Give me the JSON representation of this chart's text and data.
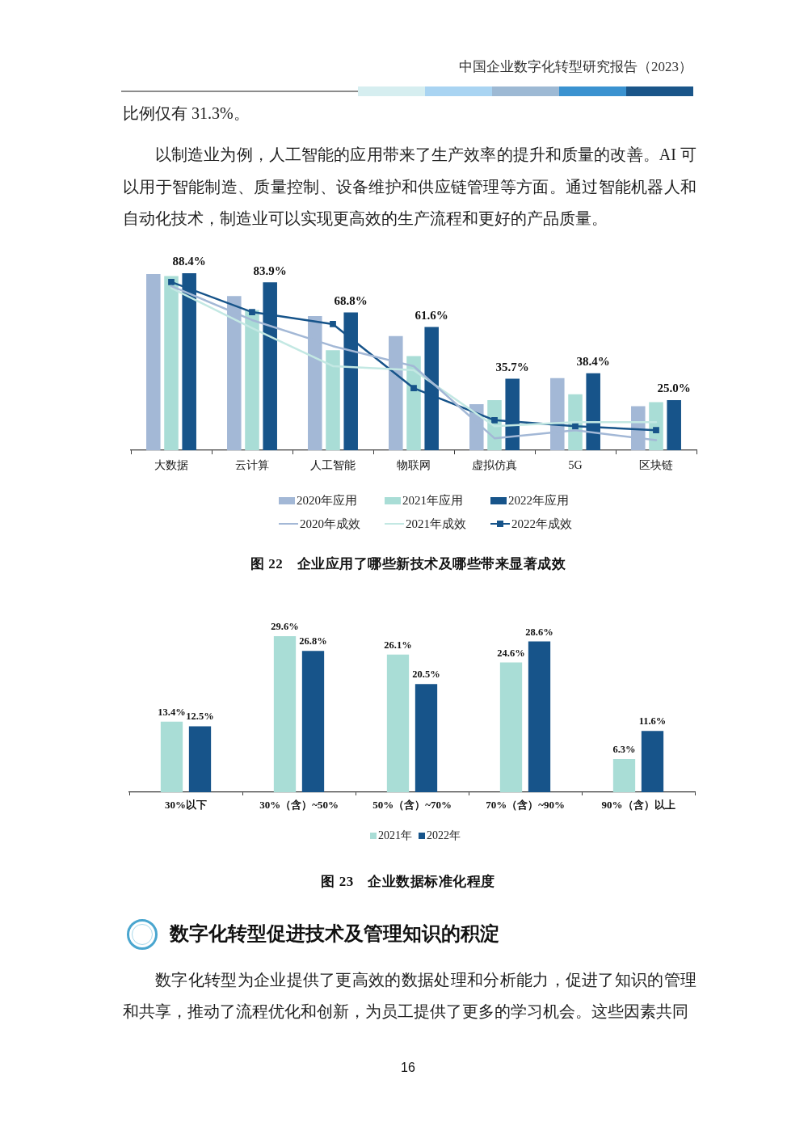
{
  "chart_data": [
    {
      "type": "bar",
      "title": "图 22　企业应用了哪些新技术及哪些带来显著成效",
      "annotations": [
        "中国企业数字化转型研究报告（2023）",
        "比例仅有 31.3%。",
        "以制造业为例，人工智能的应用带来了生产效率的提升和质量的改善。AI 可以用于智能制造、质量控制、设备维护和供应链管理等方面。通过智能机器人和自动化技术，制造业可以实现更高效的生产流程和更好的产品质量。"
      ],
      "categories": [
        "大数据",
        "云计算",
        "人工智能",
        "物联网",
        "虚拟仿真",
        "5G",
        "区块链"
      ],
      "series": [
        {
          "name": "2020年应用",
          "color": "#a3b8d6",
          "values": [
            88,
            77,
            67,
            57,
            23,
            36,
            22
          ]
        },
        {
          "name": "2021年应用",
          "color": "#a9ddd6",
          "values": [
            87,
            70,
            50,
            47,
            25,
            28,
            24
          ]
        },
        {
          "name": "2022年应用",
          "color": "#17548a",
          "values": [
            88.4,
            83.9,
            68.8,
            61.6,
            35.7,
            38.4,
            25.0
          ],
          "value_labels": [
            "88.4%",
            "83.9%",
            "68.8%",
            "61.6%",
            "35.7%",
            "38.4%",
            "25.0%"
          ]
        },
        {
          "name": "2020年成效",
          "type": "line",
          "color": "#a3b8d6",
          "marker": "none",
          "values": [
            82,
            65,
            52,
            42,
            6,
            10,
            5
          ]
        },
        {
          "name": "2021年成效",
          "type": "line",
          "color": "#c3e8e3",
          "marker": "none",
          "values": [
            81,
            61,
            42,
            40,
            12,
            14,
            14
          ]
        },
        {
          "name": "2022年成效",
          "type": "line",
          "color": "#17548a",
          "marker": "square",
          "values": [
            84,
            69,
            63,
            31,
            15,
            12,
            10
          ]
        }
      ],
      "legend": "bottom",
      "tick_labels": "x"
    },
    {
      "type": "bar",
      "title": "图 23　企业数据标准化程度",
      "annotations": [
        "数字化转型促进技术及管理知识的积淀",
        "数字化转型为企业提供了更高效的数据处理和分析能力，促进了知识的管理和共享，推动了流程优化和创新，为员工提供了更多的学习机会。这些因素共同",
        "16"
      ],
      "categories": [
        "30%以下",
        "30%（含）~50%",
        "50%（含）~70%",
        "70%（含）~90%",
        "90%（含）以上"
      ],
      "series": [
        {
          "name": "2021年",
          "color": "#a9ddd6",
          "values": [
            13.4,
            29.6,
            26.1,
            24.6,
            6.3
          ],
          "value_labels": [
            "13.4%",
            "29.6%",
            "26.1%",
            "24.6%",
            "6.3%"
          ]
        },
        {
          "name": "2022年",
          "color": "#17548a",
          "values": [
            12.5,
            26.8,
            20.5,
            28.6,
            11.6
          ],
          "value_labels": [
            "12.5%",
            "26.8%",
            "20.5%",
            "28.6%",
            "11.6%"
          ]
        }
      ],
      "legend": "bottom",
      "tick_labels": "x"
    }
  ]
}
